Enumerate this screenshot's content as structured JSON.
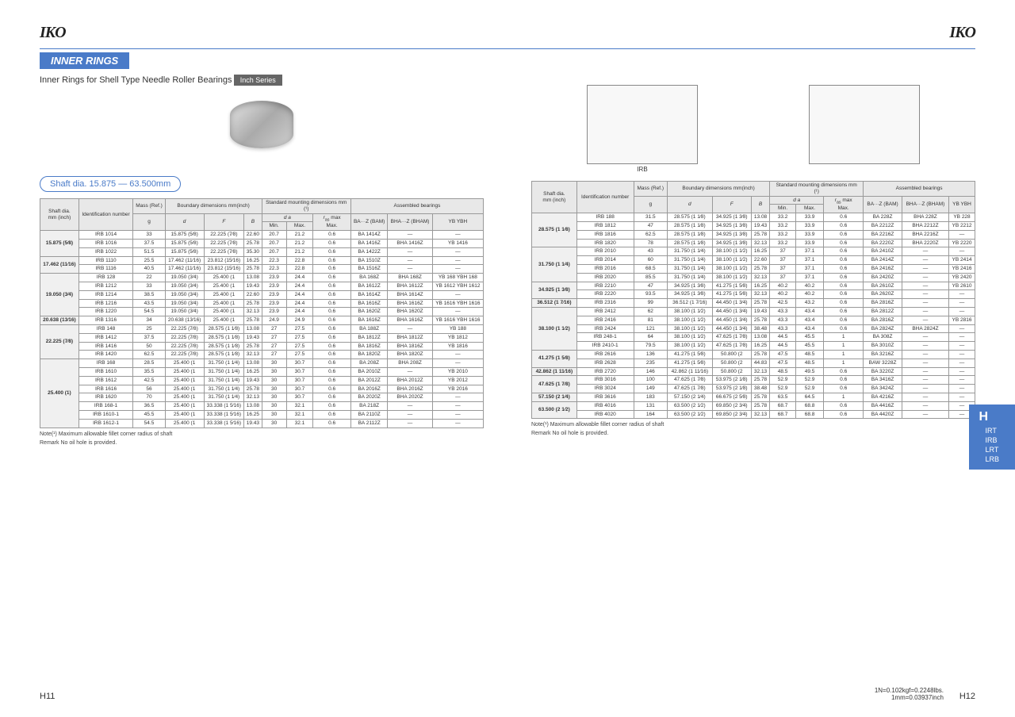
{
  "logo": "IKO",
  "section_title": "INNER RINGS",
  "subtitle": "Inner Rings for Shell Type Needle Roller Bearings",
  "badge": "Inch Series",
  "range": "Shaft dia. 15.875 — 63.500mm",
  "diagram_label": "IRB",
  "headers": {
    "shaft": "Shaft dia.",
    "shaft_unit": "mm (inch)",
    "ident": "Identification number",
    "mass": "Mass (Ref.)",
    "mass_unit": "g",
    "boundary": "Boundary dimensions mm(inch)",
    "d": "d",
    "f": "F",
    "b": "B",
    "mounting": "Standard mounting dimensions mm",
    "da": "d a",
    "min": "Min.",
    "max": "Max.",
    "ras": "r as max Max.",
    "assembled": "Assembled bearings",
    "baz": "BA···Z (BAM)",
    "bhaz": "BHA···Z (BHAM)",
    "yb": "YB YBH"
  },
  "left_table": [
    {
      "shaft": "15.875 (5⁄8)",
      "rows": [
        [
          "IRB 1014",
          "33",
          "15.875 (5⁄8)",
          "22.225 (7⁄8)",
          "22.60",
          "20.7",
          "21.2",
          "0.6",
          "BA 1414Z",
          "—",
          "—"
        ],
        [
          "IRB 1016",
          "37.5",
          "15.875 (5⁄8)",
          "22.225 (7⁄8)",
          "25.78",
          "20.7",
          "21.2",
          "0.6",
          "BA 1416Z",
          "BHA 1416Z",
          "YB 1416"
        ],
        [
          "IRB 1022",
          "51.5",
          "15.875 (5⁄8)",
          "22.225 (7⁄8)",
          "35.30",
          "20.7",
          "21.2",
          "0.6",
          "BA 1422Z",
          "—",
          "—"
        ]
      ]
    },
    {
      "shaft": "17.462 (11⁄16)",
      "rows": [
        [
          "IRB 1110",
          "25.5",
          "17.462 (11⁄16)",
          "23.812 (15⁄16)",
          "16.25",
          "22.3",
          "22.8",
          "0.6",
          "BA 1510Z",
          "—",
          "—"
        ],
        [
          "IRB 1116",
          "40.5",
          "17.462 (11⁄16)",
          "23.812 (15⁄16)",
          "25.78",
          "22.3",
          "22.8",
          "0.6",
          "BA 1516Z",
          "—",
          "—"
        ]
      ]
    },
    {
      "shaft": "19.050 (3⁄4)",
      "rows": [
        [
          "IRB 128",
          "22",
          "19.050 (3⁄4)",
          "25.400 (1",
          "13.08",
          "23.9",
          "24.4",
          "0.6",
          "BA 168Z",
          "BHA 168Z",
          "YB 168 YBH 168"
        ],
        [
          "IRB 1212",
          "33",
          "19.050 (3⁄4)",
          "25.400 (1",
          "19.43",
          "23.9",
          "24.4",
          "0.6",
          "BA 1612Z",
          "BHA 1612Z",
          "YB 1612 YBH 1612"
        ],
        [
          "IRB 1214",
          "38.5",
          "19.050 (3⁄4)",
          "25.400 (1",
          "22.60",
          "23.9",
          "24.4",
          "0.6",
          "BA 1614Z",
          "BHA 1614Z",
          "—"
        ],
        [
          "IRB 1216",
          "43.5",
          "19.050 (3⁄4)",
          "25.400 (1",
          "25.78",
          "23.9",
          "24.4",
          "0.6",
          "BA 1616Z",
          "BHA 1616Z",
          "YB 1616 YBH 1616"
        ],
        [
          "IRB 1220",
          "54.5",
          "19.050 (3⁄4)",
          "25.400 (1",
          "32.13",
          "23.9",
          "24.4",
          "0.6",
          "BA 1620Z",
          "BHA 1620Z",
          "—"
        ]
      ]
    },
    {
      "shaft": "20.638 (13⁄16)",
      "rows": [
        [
          "IRB 1316",
          "34",
          "20.638 (13⁄16)",
          "25.400 (1",
          "25.78",
          "24.9",
          "24.9",
          "0.6",
          "BA 1616Z",
          "BHA 1616Z",
          "YB 1616 YBH 1616"
        ]
      ]
    },
    {
      "shaft": "22.225 (7⁄8)",
      "rows": [
        [
          "IRB 148",
          "25",
          "22.225 (7⁄8)",
          "28.575 (1 1⁄8)",
          "13.08",
          "27",
          "27.5",
          "0.6",
          "BA 188Z",
          "—",
          "YB 188"
        ],
        [
          "IRB 1412",
          "37.5",
          "22.225 (7⁄8)",
          "28.575 (1 1⁄8)",
          "19.43",
          "27",
          "27.5",
          "0.6",
          "BA 1812Z",
          "BHA 1812Z",
          "YB 1812"
        ],
        [
          "IRB 1416",
          "50",
          "22.225 (7⁄8)",
          "28.575 (1 1⁄8)",
          "25.78",
          "27",
          "27.5",
          "0.6",
          "BA 1816Z",
          "BHA 1816Z",
          "YB 1816"
        ],
        [
          "IRB 1420",
          "62.5",
          "22.225 (7⁄8)",
          "28.575 (1 1⁄8)",
          "32.13",
          "27",
          "27.5",
          "0.6",
          "BA 1820Z",
          "BHA 1820Z",
          "—"
        ]
      ]
    },
    {
      "shaft": "25.400 (1)",
      "rows": [
        [
          "IRB 168",
          "28.5",
          "25.400 (1",
          "31.750 (1 1⁄4)",
          "13.08",
          "30",
          "30.7",
          "0.6",
          "BA 208Z",
          "BHA 208Z",
          "—"
        ],
        [
          "IRB 1610",
          "35.5",
          "25.400 (1",
          "31.750 (1 1⁄4)",
          "16.25",
          "30",
          "30.7",
          "0.6",
          "BA 2010Z",
          "—",
          "YB 2010"
        ],
        [
          "IRB 1612",
          "42.5",
          "25.400 (1",
          "31.750 (1 1⁄4)",
          "19.43",
          "30",
          "30.7",
          "0.6",
          "BA 2012Z",
          "BHA 2012Z",
          "YB 2012"
        ],
        [
          "IRB 1616",
          "56",
          "25.400 (1",
          "31.750 (1 1⁄4)",
          "25.78",
          "30",
          "30.7",
          "0.6",
          "BA 2016Z",
          "BHA 2016Z",
          "YB 2016"
        ],
        [
          "IRB 1620",
          "70",
          "25.400 (1",
          "31.750 (1 1⁄4)",
          "32.13",
          "30",
          "30.7",
          "0.6",
          "BA 2020Z",
          "BHA 2020Z",
          "—"
        ],
        [
          "IRB 168-1",
          "36.5",
          "25.400 (1",
          "33.338 (1 5⁄16)",
          "13.08",
          "30",
          "32.1",
          "0.6",
          "BA 218Z",
          "—",
          "—"
        ],
        [
          "IRB 1610-1",
          "45.5",
          "25.400 (1",
          "33.338 (1 5⁄16)",
          "16.25",
          "30",
          "32.1",
          "0.6",
          "BA 2110Z",
          "—",
          "—"
        ],
        [
          "IRB 1612-1",
          "54.5",
          "25.400 (1",
          "33.338 (1 5⁄16)",
          "19.43",
          "30",
          "32.1",
          "0.6",
          "BA 2112Z",
          "—",
          "—"
        ]
      ]
    }
  ],
  "right_table": [
    {
      "shaft": "28.575 (1 1⁄8)",
      "rows": [
        [
          "IRB 188",
          "31.5",
          "28.575 (1 1⁄8)",
          "34.925 (1 3⁄8)",
          "13.08",
          "33.2",
          "33.9",
          "0.6",
          "BA 228Z",
          "BHA 228Z",
          "YB 228"
        ],
        [
          "IRB 1812",
          "47",
          "28.575 (1 1⁄8)",
          "34.925 (1 3⁄8)",
          "19.43",
          "33.2",
          "33.9",
          "0.6",
          "BA 2212Z",
          "BHA 2212Z",
          "YB 2212"
        ],
        [
          "IRB 1816",
          "62.5",
          "28.575 (1 1⁄8)",
          "34.925 (1 3⁄8)",
          "25.78",
          "33.2",
          "33.9",
          "0.6",
          "BA 2216Z",
          "BHA 2216Z",
          "—"
        ],
        [
          "IRB 1820",
          "78",
          "28.575 (1 1⁄8)",
          "34.925 (1 3⁄8)",
          "32.13",
          "33.2",
          "33.9",
          "0.6",
          "BA 2220Z",
          "BHA 2220Z",
          "YB 2220"
        ]
      ]
    },
    {
      "shaft": "31.750 (1 1⁄4)",
      "rows": [
        [
          "IRB 2010",
          "43",
          "31.750 (1 1⁄4)",
          "38.100 (1 1⁄2)",
          "16.25",
          "37",
          "37.1",
          "0.6",
          "BA 2410Z",
          "—",
          "—"
        ],
        [
          "IRB 2014",
          "60",
          "31.750 (1 1⁄4)",
          "38.100 (1 1⁄2)",
          "22.60",
          "37",
          "37.1",
          "0.6",
          "BA 2414Z",
          "—",
          "YB 2414"
        ],
        [
          "IRB 2016",
          "68.5",
          "31.750 (1 1⁄4)",
          "38.100 (1 1⁄2)",
          "25.78",
          "37",
          "37.1",
          "0.6",
          "BA 2416Z",
          "—",
          "YB 2416"
        ],
        [
          "IRB 2020",
          "85.5",
          "31.750 (1 1⁄4)",
          "38.100 (1 1⁄2)",
          "32.13",
          "37",
          "37.1",
          "0.6",
          "BA 2420Z",
          "—",
          "YB 2420"
        ]
      ]
    },
    {
      "shaft": "34.925 (1 3⁄8)",
      "rows": [
        [
          "IRB 2210",
          "47",
          "34.925 (1 3⁄8)",
          "41.275 (1 5⁄8)",
          "16.25",
          "40.2",
          "40.2",
          "0.6",
          "BA 2610Z",
          "—",
          "YB 2610"
        ],
        [
          "IRB 2220",
          "93.5",
          "34.925 (1 3⁄8)",
          "41.275 (1 5⁄8)",
          "32.13",
          "40.2",
          "40.2",
          "0.6",
          "BA 2620Z",
          "—",
          "—"
        ]
      ]
    },
    {
      "shaft": "36.512 (1 7⁄16)",
      "rows": [
        [
          "IRB 2316",
          "99",
          "36.512 (1 7⁄16)",
          "44.450 (1 3⁄4)",
          "25.78",
          "42.5",
          "43.2",
          "0.6",
          "BA 2816Z",
          "—",
          "—"
        ]
      ]
    },
    {
      "shaft": "38.100 (1 1⁄2)",
      "rows": [
        [
          "IRB 2412",
          "62",
          "38.100 (1 1⁄2)",
          "44.450 (1 3⁄4)",
          "19.43",
          "43.3",
          "43.4",
          "0.6",
          "BA 2812Z",
          "—",
          "—"
        ],
        [
          "IRB 2416",
          "81",
          "38.100 (1 1⁄2)",
          "44.450 (1 3⁄4)",
          "25.78",
          "43.3",
          "43.4",
          "0.6",
          "BA 2816Z",
          "—",
          "YB 2816"
        ],
        [
          "IRB 2424",
          "121",
          "38.100 (1 1⁄2)",
          "44.450 (1 3⁄4)",
          "38.48",
          "43.3",
          "43.4",
          "0.6",
          "BA 2824Z",
          "BHA 2824Z",
          "—"
        ],
        [
          "IRB 248-1",
          "64",
          "38.100 (1 1⁄2)",
          "47.625 (1 7⁄8)",
          "13.08",
          "44.5",
          "45.5",
          "1",
          "BA 308Z",
          "—",
          "—"
        ],
        [
          "IRB 2410-1",
          "79.5",
          "38.100 (1 1⁄2)",
          "47.625 (1 7⁄8)",
          "16.25",
          "44.5",
          "45.5",
          "1",
          "BA 3010Z",
          "—",
          "—"
        ]
      ]
    },
    {
      "shaft": "41.275 (1 5⁄8)",
      "rows": [
        [
          "IRB 2616",
          "136",
          "41.275 (1 5⁄8)",
          "50.800 (2",
          "25.78",
          "47.5",
          "48.5",
          "1",
          "BA 3216Z",
          "—",
          "—"
        ],
        [
          "IRB 2628",
          "235",
          "41.275 (1 5⁄8)",
          "50.800 (2",
          "44.83",
          "47.5",
          "48.5",
          "1",
          "BAW 3228Z",
          "—",
          "—"
        ]
      ]
    },
    {
      "shaft": "42.862 (1 11⁄16)",
      "rows": [
        [
          "IRB 2720",
          "146",
          "42.862 (1 11⁄16)",
          "50.800 (2",
          "32.13",
          "48.5",
          "49.5",
          "0.6",
          "BA 3220Z",
          "—",
          "—"
        ]
      ]
    },
    {
      "shaft": "47.625 (1 7⁄8)",
      "rows": [
        [
          "IRB 3016",
          "100",
          "47.625 (1 7⁄8)",
          "53.975 (2 1⁄8)",
          "25.78",
          "52.9",
          "52.9",
          "0.6",
          "BA 3416Z",
          "—",
          "—"
        ],
        [
          "IRB 3024",
          "149",
          "47.625 (1 7⁄8)",
          "53.975 (2 1⁄8)",
          "38.48",
          "52.9",
          "52.9",
          "0.6",
          "BA 3424Z",
          "—",
          "—"
        ]
      ]
    },
    {
      "shaft": "57.150 (2 1⁄4)",
      "rows": [
        [
          "IRB 3616",
          "183",
          "57.150 (2 1⁄4)",
          "66.675 (2 5⁄8)",
          "25.78",
          "63.5",
          "64.5",
          "1",
          "BA 4216Z",
          "—",
          "—"
        ]
      ]
    },
    {
      "shaft": "63.500 (2 1⁄2)",
      "rows": [
        [
          "IRB 4016",
          "131",
          "63.500 (2 1⁄2)",
          "69.850 (2 3⁄4)",
          "25.78",
          "68.7",
          "68.8",
          "0.6",
          "BA 4416Z",
          "—",
          "—"
        ],
        [
          "IRB 4020",
          "164",
          "63.500 (2 1⁄2)",
          "69.850 (2 3⁄4)",
          "32.13",
          "68.7",
          "68.8",
          "0.6",
          "BA 4420Z",
          "—",
          "—"
        ]
      ]
    }
  ],
  "note1": "Note(¹)  Maximum allowable fillet corner radius of shaft",
  "note2": "Remark  No oil hole is provided.",
  "page_left": "H11",
  "page_right": "H12",
  "unit_note1": "1N=0.102kgf=0.2248lbs.",
  "unit_note2": "1mm=0.03937inch",
  "side_tabs": [
    "IRT",
    "IRB",
    "LRT",
    "LRB"
  ]
}
